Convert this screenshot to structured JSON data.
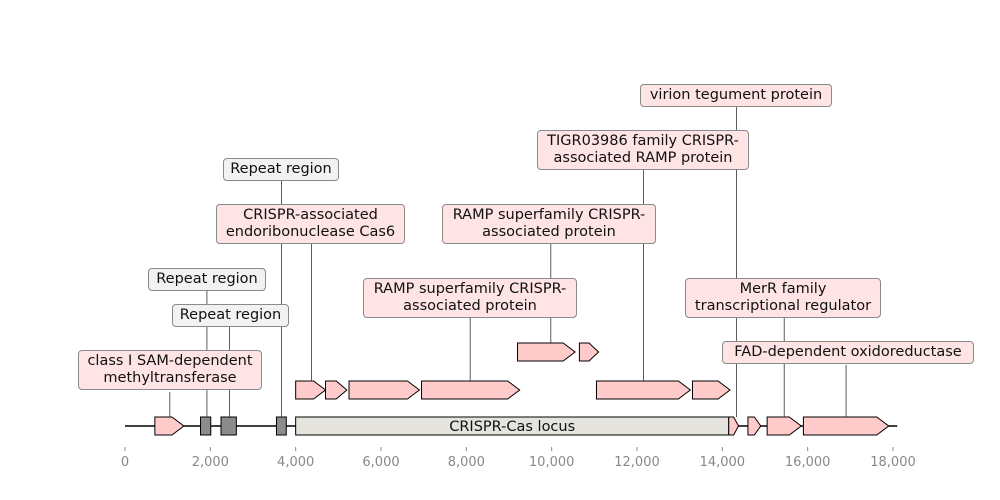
{
  "map": {
    "axis": {
      "min": 0,
      "max": 18000,
      "ticks": [
        "0",
        "2,000",
        "4,000",
        "6,000",
        "8,000",
        "10,000",
        "12,000",
        "14,000",
        "16,000",
        "18,000"
      ],
      "tick_values": [
        0,
        2000,
        4000,
        6000,
        8000,
        10000,
        12000,
        14000,
        16000,
        18000
      ]
    },
    "sequence": {
      "start": 0,
      "end": 18100
    },
    "colors": {
      "gene": "#ffcaca",
      "repeat": "#8c8c8c",
      "locus": "#e4e3de",
      "label_pink": "#ffe4e6",
      "label_grey": "#f2f2f2"
    },
    "locus": {
      "label": "CRISPR-Cas locus",
      "start": 4000,
      "end": 14150
    },
    "features": [
      {
        "type": "gene",
        "start": 700,
        "end": 1380,
        "strand": 1,
        "row": 0
      },
      {
        "type": "repeat",
        "start": 1770,
        "end": 2010,
        "row": 0
      },
      {
        "type": "repeat",
        "start": 2250,
        "end": 2610,
        "row": 0
      },
      {
        "type": "repeat",
        "start": 3550,
        "end": 3780,
        "row": 0
      },
      {
        "type": "gene",
        "start": 14150,
        "end": 14380,
        "strand": 1,
        "row": 0
      },
      {
        "type": "gene",
        "start": 14600,
        "end": 14900,
        "strand": 1,
        "row": 0
      },
      {
        "type": "gene",
        "start": 15050,
        "end": 15850,
        "strand": 1,
        "row": 0
      },
      {
        "type": "gene",
        "start": 15900,
        "end": 17900,
        "strand": 1,
        "row": 0
      },
      {
        "type": "gene",
        "start": 4000,
        "end": 4700,
        "strand": 1,
        "row": 1
      },
      {
        "type": "gene",
        "start": 4700,
        "end": 5200,
        "strand": 1,
        "row": 1
      },
      {
        "type": "gene",
        "start": 5250,
        "end": 6900,
        "strand": 1,
        "row": 1
      },
      {
        "type": "gene",
        "start": 6950,
        "end": 9250,
        "strand": 1,
        "row": 1
      },
      {
        "type": "gene",
        "start": 11050,
        "end": 13250,
        "strand": 1,
        "row": 1
      },
      {
        "type": "gene",
        "start": 13300,
        "end": 14180,
        "strand": 1,
        "row": 1
      },
      {
        "type": "gene",
        "start": 9200,
        "end": 10550,
        "strand": 1,
        "row": 2
      },
      {
        "type": "gene",
        "start": 10650,
        "end": 11100,
        "strand": 1,
        "row": 2
      }
    ],
    "labels": [
      {
        "text": "class I SAM-dependent\nmethyltransferase",
        "style": "pink",
        "pos": 1050
      },
      {
        "text": "Repeat region",
        "style": "grey",
        "pos": 1920
      },
      {
        "text": "Repeat region",
        "style": "grey",
        "pos": 2450
      },
      {
        "text": "Repeat region",
        "style": "grey",
        "pos": 3670
      },
      {
        "text": "CRISPR-associated\nendoribonuclease Cas6",
        "style": "pink",
        "pos": 4370
      },
      {
        "text": "RAMP superfamily CRISPR-\nassociated protein",
        "style": "pink",
        "pos": 8090
      },
      {
        "text": "RAMP superfamily CRISPR-\nassociated protein",
        "style": "pink",
        "pos": 9980
      },
      {
        "text": "TIGR03986 family CRISPR-\nassociated RAMP protein",
        "style": "pink",
        "pos": 12150
      },
      {
        "text": "virion tegument protein",
        "style": "pink",
        "pos": 14330
      },
      {
        "text": "MerR family\ntranscriptional regulator",
        "style": "pink",
        "pos": 15450
      },
      {
        "text": "FAD-dependent oxidoreductase",
        "style": "pink",
        "pos": 16900
      }
    ]
  }
}
